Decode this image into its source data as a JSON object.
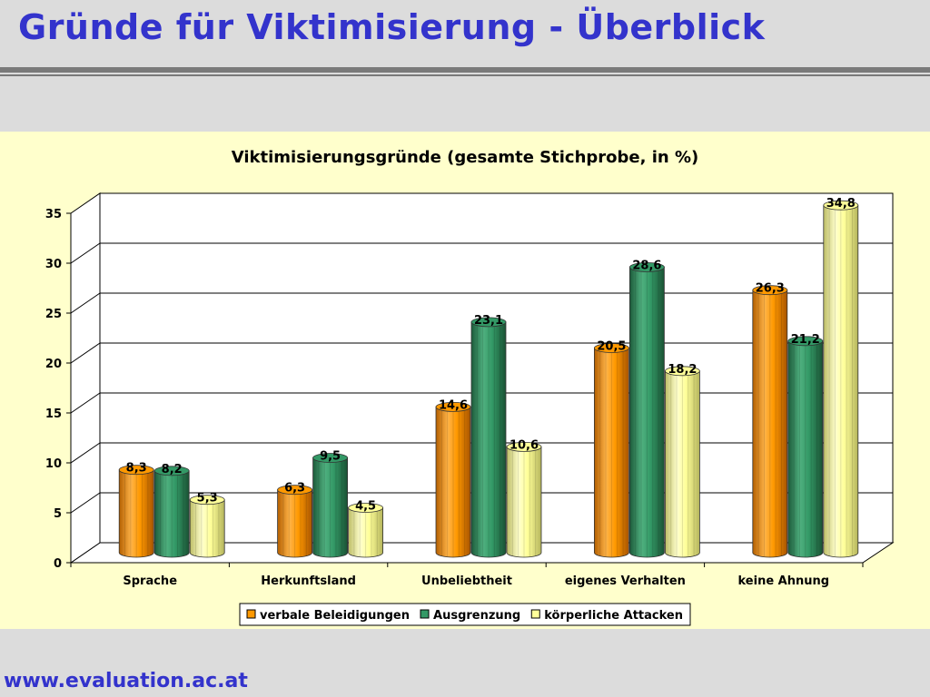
{
  "slide": {
    "title": "Gründe für Viktimisierung - Überblick",
    "footer": "www.evaluation.ac.at"
  },
  "chart_data": {
    "type": "bar",
    "title": "Viktimisierungsgründe (gesamte Stichprobe, in %)",
    "categories": [
      "Sprache",
      "Herkunftsland",
      "Unbeliebtheit",
      "eigenes Verhalten",
      "keine Ahnung"
    ],
    "series": [
      {
        "name": "verbale Beleidigungen",
        "values": [
          8.3,
          6.3,
          14.6,
          20.5,
          26.3
        ],
        "labels": [
          "8,3",
          "6,3",
          "14,6",
          "20,5",
          "26,3"
        ],
        "color": "#ff9900"
      },
      {
        "name": "Ausgrenzung",
        "values": [
          8.2,
          9.5,
          23.1,
          28.6,
          21.2
        ],
        "labels": [
          "8,2",
          "9,5",
          "23,1",
          "28,6",
          "21,2"
        ],
        "color": "#339966"
      },
      {
        "name": "körperliche Attacken",
        "values": [
          5.3,
          4.5,
          10.6,
          18.2,
          34.8
        ],
        "labels": [
          "5,3",
          "4,5",
          "10,6",
          "18,2",
          "34,8"
        ],
        "color": "#ffff99"
      }
    ],
    "ylim": [
      0,
      35
    ],
    "yticks": [
      0,
      5,
      10,
      15,
      20,
      25,
      30,
      35
    ],
    "grid": true,
    "legend": "bottom",
    "style": "3d-cylinder"
  }
}
